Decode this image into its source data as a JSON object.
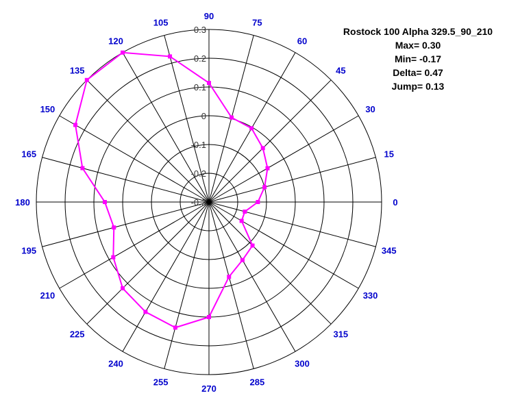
{
  "chart_data": {
    "type": "polar-line",
    "title": "Rostock 100 Alpha 329.5_90_210",
    "stats": {
      "max": "Max= 0.30",
      "min": "Min= -0.17",
      "delta": "Delta= 0.47",
      "jump": "Jump= 0.13"
    },
    "angle_ticks": [
      0,
      15,
      30,
      45,
      60,
      75,
      90,
      105,
      120,
      135,
      150,
      165,
      180,
      195,
      210,
      225,
      240,
      255,
      270,
      285,
      300,
      315,
      330,
      345
    ],
    "radial_ticks": [
      "-0.3",
      "-0.2",
      "-0.1",
      "0",
      "0.1",
      "0.2",
      "0.3"
    ],
    "rlim": [
      -0.3,
      0.3
    ],
    "grid": true,
    "series": [
      {
        "color": "#ff00ff",
        "angles": [
          0,
          15,
          30,
          45,
          60,
          75,
          90,
          105,
          120,
          135,
          150,
          165,
          180,
          195,
          210,
          225,
          240,
          255,
          270,
          285,
          300,
          315,
          330,
          345
        ],
        "values": [
          -0.13,
          -0.1,
          -0.065,
          -0.035,
          -0.004,
          0.004,
          0.114,
          0.224,
          0.3,
          0.3,
          0.236,
          0.155,
          0.062,
          0.042,
          0.084,
          0.124,
          0.141,
          0.152,
          0.1,
          -0.031,
          -0.067,
          -0.086,
          -0.169,
          -0.171
        ]
      }
    ],
    "colors": {
      "angle_labels": "#0000cc",
      "grid": "#000000",
      "radial_labels": "#333333"
    }
  }
}
